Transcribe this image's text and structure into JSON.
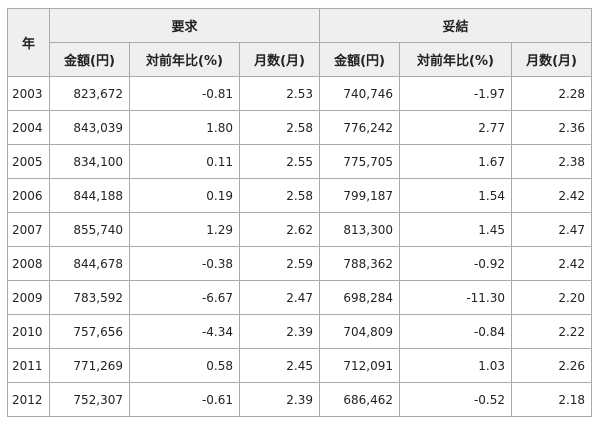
{
  "header": {
    "year": "年",
    "groups": [
      "要求",
      "妥結"
    ],
    "columns": [
      "金額(円)",
      "対前年比(%)",
      "月数(月)",
      "金額(円)",
      "対前年比(%)",
      "月数(月)"
    ]
  },
  "table": {
    "rows": [
      [
        "2003",
        "823,672",
        "-0.81",
        "2.53",
        "740,746",
        "-1.97",
        "2.28"
      ],
      [
        "2004",
        "843,039",
        "1.80",
        "2.58",
        "776,242",
        "2.77",
        "2.36"
      ],
      [
        "2005",
        "834,100",
        "0.11",
        "2.55",
        "775,705",
        "1.67",
        "2.38"
      ],
      [
        "2006",
        "844,188",
        "0.19",
        "2.58",
        "799,187",
        "1.54",
        "2.42"
      ],
      [
        "2007",
        "855,740",
        "1.29",
        "2.62",
        "813,300",
        "1.45",
        "2.47"
      ],
      [
        "2008",
        "844,678",
        "-0.38",
        "2.59",
        "788,362",
        "-0.92",
        "2.42"
      ],
      [
        "2009",
        "783,592",
        "-6.67",
        "2.47",
        "698,284",
        "-11.30",
        "2.20"
      ],
      [
        "2010",
        "757,656",
        "-4.34",
        "2.39",
        "704,809",
        "-0.84",
        "2.22"
      ],
      [
        "2011",
        "771,269",
        "0.58",
        "2.45",
        "712,091",
        "1.03",
        "2.26"
      ],
      [
        "2012",
        "752,307",
        "-0.61",
        "2.39",
        "686,462",
        "-0.52",
        "2.18"
      ]
    ]
  }
}
